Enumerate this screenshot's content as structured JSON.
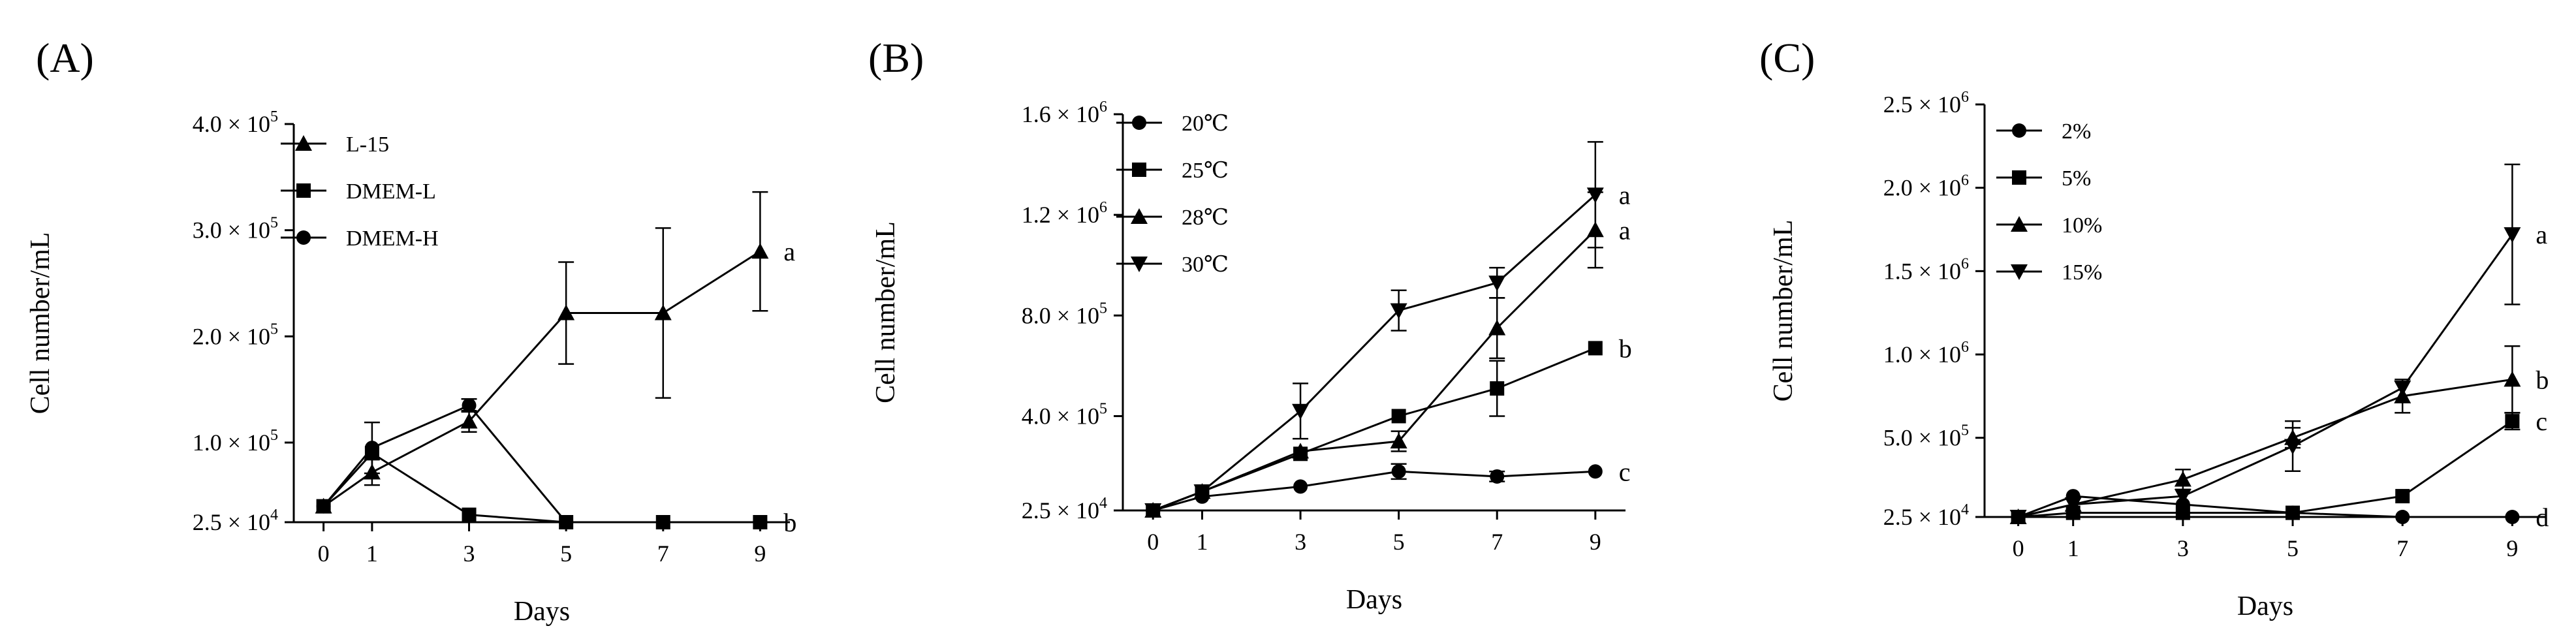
{
  "figure": {
    "panels": [
      "(A)",
      "(B)",
      "(C)"
    ]
  },
  "chart_data": [
    {
      "type": "line",
      "panel": "(A)",
      "xlabel": "Days",
      "ylabel": "Cell number/mL",
      "x": [
        0,
        1,
        3,
        5,
        7,
        9
      ],
      "ylim": [
        25000,
        400000
      ],
      "yticks": [
        25000,
        100000,
        200000,
        300000,
        400000
      ],
      "ytick_labels": [
        {
          "mantissa": "2.5",
          "exp": "4"
        },
        {
          "mantissa": "1.0",
          "exp": "5"
        },
        {
          "mantissa": "2.0",
          "exp": "5"
        },
        {
          "mantissa": "3.0",
          "exp": "5"
        },
        {
          "mantissa": "4.0",
          "exp": "5"
        }
      ],
      "legend_position": "top-left",
      "series": [
        {
          "name": "L-15",
          "marker": "triangle-up",
          "values": [
            40000,
            72000,
            120000,
            222000,
            222000,
            280000
          ],
          "errors": [
            0,
            12000,
            10000,
            48000,
            80000,
            56000
          ],
          "letter": "a"
        },
        {
          "name": "DMEM-L",
          "marker": "square",
          "values": [
            40000,
            90000,
            32000,
            25000,
            25000,
            25000
          ],
          "errors": [
            0,
            0,
            0,
            0,
            0,
            0
          ],
          "letter": "b"
        },
        {
          "name": "DMEM-H",
          "marker": "circle",
          "values": [
            40000,
            95000,
            135000,
            25000,
            null,
            null
          ],
          "errors": [
            0,
            24000,
            6000,
            0,
            0,
            0
          ],
          "letter": ""
        }
      ]
    },
    {
      "type": "line",
      "panel": "(B)",
      "xlabel": "Days",
      "ylabel": "Cell number/mL",
      "x": [
        0,
        1,
        3,
        5,
        7,
        9
      ],
      "ylim": [
        25000,
        1600000
      ],
      "yticks": [
        25000,
        400000,
        800000,
        1200000,
        1600000
      ],
      "ytick_labels": [
        {
          "mantissa": "2.5",
          "exp": "4"
        },
        {
          "mantissa": "4.0",
          "exp": "5"
        },
        {
          "mantissa": "8.0",
          "exp": "5"
        },
        {
          "mantissa": "1.2",
          "exp": "6"
        },
        {
          "mantissa": "1.6",
          "exp": "6"
        }
      ],
      "legend_position": "top-left",
      "series": [
        {
          "name": "20℃",
          "marker": "circle",
          "values": [
            25000,
            80000,
            120000,
            180000,
            160000,
            180000
          ],
          "errors": [
            0,
            0,
            0,
            30000,
            20000,
            0
          ],
          "letter": "c"
        },
        {
          "name": "25℃",
          "marker": "square",
          "values": [
            25000,
            100000,
            250000,
            400000,
            510000,
            670000
          ],
          "errors": [
            0,
            0,
            0,
            0,
            110000,
            0
          ],
          "letter": "b"
        },
        {
          "name": "28℃",
          "marker": "triangle-up",
          "values": [
            25000,
            100000,
            260000,
            300000,
            750000,
            1140000
          ],
          "errors": [
            0,
            0,
            0,
            40000,
            120000,
            150000
          ],
          "letter": "a"
        },
        {
          "name": "30℃",
          "marker": "triangle-down",
          "values": [
            25000,
            100000,
            420000,
            820000,
            930000,
            1280000
          ],
          "errors": [
            0,
            0,
            110000,
            80000,
            60000,
            210000
          ],
          "letter": "a"
        }
      ]
    },
    {
      "type": "line",
      "panel": "(C)",
      "xlabel": "Days",
      "ylabel": "Cell number/mL",
      "x": [
        0,
        1,
        3,
        5,
        7,
        9
      ],
      "ylim": [
        25000,
        2500000
      ],
      "yticks": [
        25000,
        500000,
        1000000,
        1500000,
        2000000,
        2500000
      ],
      "ytick_labels": [
        {
          "mantissa": "2.5",
          "exp": "4"
        },
        {
          "mantissa": "5.0",
          "exp": "5"
        },
        {
          "mantissa": "1.0",
          "exp": "6"
        },
        {
          "mantissa": "1.5",
          "exp": "6"
        },
        {
          "mantissa": "2.0",
          "exp": "6"
        },
        {
          "mantissa": "2.5",
          "exp": "6"
        }
      ],
      "legend_position": "top-left",
      "series": [
        {
          "name": "2%",
          "marker": "circle",
          "values": [
            25000,
            150000,
            100000,
            50000,
            25000,
            25000
          ],
          "errors": [
            0,
            0,
            0,
            0,
            0,
            0
          ],
          "letter": "d"
        },
        {
          "name": "5%",
          "marker": "square",
          "values": [
            25000,
            50000,
            50000,
            50000,
            150000,
            600000
          ],
          "errors": [
            0,
            0,
            0,
            0,
            0,
            50000
          ],
          "letter": "c"
        },
        {
          "name": "10%",
          "marker": "triangle-up",
          "values": [
            25000,
            100000,
            250000,
            500000,
            750000,
            850000
          ],
          "errors": [
            0,
            0,
            60000,
            60000,
            100000,
            200000
          ],
          "letter": "b"
        },
        {
          "name": "15%",
          "marker": "triangle-down",
          "values": [
            25000,
            100000,
            150000,
            450000,
            800000,
            1720000
          ],
          "errors": [
            0,
            0,
            0,
            150000,
            0,
            420000
          ],
          "letter": "a"
        }
      ]
    }
  ]
}
